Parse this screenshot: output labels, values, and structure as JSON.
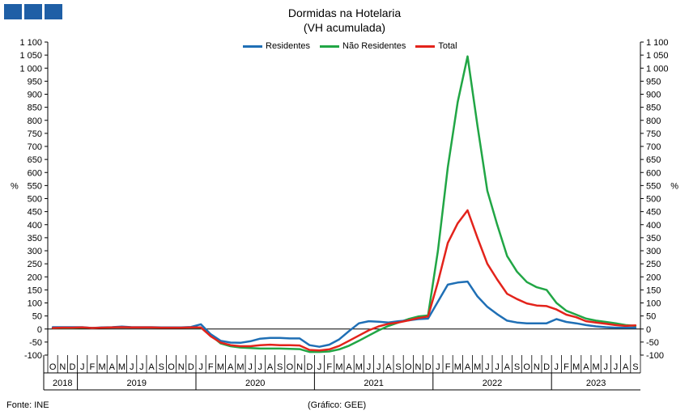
{
  "header": {
    "title": "Dormidas na Hotelaria",
    "subtitle": "(VH acumulada)"
  },
  "logo": {
    "icon": "ine-logo-icon"
  },
  "footer": {
    "source": "Fonte: INE",
    "credit": "(Gráfico: GEE)"
  },
  "chart_data": {
    "type": "line",
    "title": "Dormidas na Hotelaria",
    "subtitle": "(VH acumulada)",
    "ylabel_left": "%",
    "ylabel_right": "%",
    "ylim": [
      -100,
      1100
    ],
    "yticks": [
      -100,
      -50,
      0,
      50,
      100,
      150,
      200,
      250,
      300,
      350,
      400,
      450,
      500,
      550,
      600,
      650,
      700,
      750,
      800,
      850,
      900,
      950,
      1000,
      1050,
      1100
    ],
    "ytick_labels": [
      "-100",
      "-50",
      "0",
      "50",
      "100",
      "150",
      "200",
      "250",
      "300",
      "350",
      "400",
      "450",
      "500",
      "550",
      "600",
      "650",
      "700",
      "750",
      "800",
      "850",
      "900",
      "950",
      "1 000",
      "1 050",
      "1 100"
    ],
    "grid": false,
    "legend_position": "top-center",
    "x_month_labels": [
      "O",
      "N",
      "D",
      "J",
      "F",
      "M",
      "A",
      "M",
      "J",
      "J",
      "A",
      "S",
      "O",
      "N",
      "D",
      "J",
      "F",
      "M",
      "A",
      "M",
      "J",
      "J",
      "A",
      "S",
      "O",
      "N",
      "D",
      "J",
      "F",
      "M",
      "A",
      "M",
      "J",
      "J",
      "A",
      "S",
      "O",
      "N",
      "D",
      "J",
      "F",
      "M",
      "A",
      "M",
      "J",
      "J",
      "A",
      "S",
      "O",
      "N",
      "D",
      "J",
      "F",
      "M",
      "A",
      "M",
      "J",
      "J",
      "A",
      "S"
    ],
    "x_year_groups": [
      {
        "label": "2018",
        "count": 3
      },
      {
        "label": "2019",
        "count": 12
      },
      {
        "label": "2020",
        "count": 12
      },
      {
        "label": "2021",
        "count": 12
      },
      {
        "label": "2022",
        "count": 12
      },
      {
        "label": "2023",
        "count": 9
      }
    ],
    "series": [
      {
        "name": "Residentes",
        "color": "#1f6fb5",
        "values": [
          7,
          7,
          7,
          7,
          4,
          6,
          7,
          9,
          7,
          7,
          7,
          6,
          6,
          6,
          8,
          18,
          -20,
          -45,
          -52,
          -53,
          -47,
          -37,
          -34,
          -34,
          -36,
          -36,
          -62,
          -68,
          -60,
          -40,
          -8,
          22,
          30,
          28,
          25,
          30,
          33,
          38,
          40,
          105,
          170,
          178,
          182,
          125,
          85,
          57,
          32,
          25,
          22,
          22,
          22,
          38,
          27,
          22,
          15,
          10,
          7,
          5,
          5,
          5
        ]
      },
      {
        "name": "Não Residentes",
        "color": "#21a645",
        "values": [
          4,
          4,
          4,
          5,
          4,
          5,
          6,
          7,
          6,
          6,
          6,
          5,
          5,
          5,
          6,
          5,
          -24,
          -55,
          -66,
          -71,
          -73,
          -75,
          -75,
          -75,
          -76,
          -77,
          -88,
          -88,
          -86,
          -78,
          -64,
          -45,
          -25,
          -5,
          12,
          25,
          38,
          48,
          52,
          300,
          620,
          870,
          1045,
          780,
          530,
          400,
          280,
          220,
          180,
          160,
          150,
          100,
          70,
          55,
          40,
          32,
          27,
          22,
          15,
          12
        ]
      },
      {
        "name": "Total",
        "color": "#e3231b",
        "values": [
          4,
          5,
          5,
          6,
          4,
          5,
          6,
          7,
          6,
          6,
          6,
          5,
          5,
          5,
          6,
          6,
          -28,
          -52,
          -62,
          -66,
          -66,
          -62,
          -60,
          -62,
          -62,
          -63,
          -80,
          -82,
          -78,
          -65,
          -45,
          -25,
          -5,
          10,
          20,
          25,
          33,
          42,
          48,
          180,
          330,
          405,
          455,
          350,
          250,
          190,
          135,
          115,
          98,
          90,
          88,
          75,
          55,
          45,
          30,
          25,
          20,
          15,
          12,
          14
        ]
      }
    ]
  }
}
